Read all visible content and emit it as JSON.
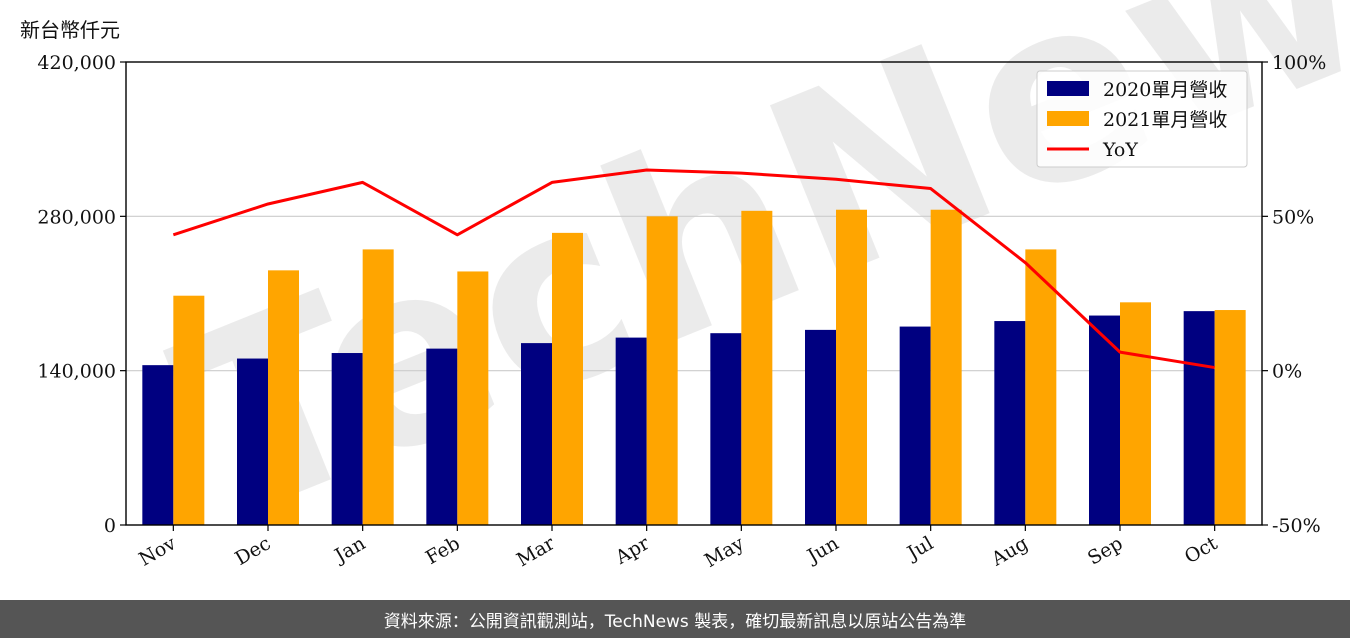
{
  "unit_label": "新台幣仟元",
  "footer_text": "資料來源：公開資訊觀測站，TechNews 製表，確切最新訊息以原站公告為準",
  "watermark_text": "TechNews",
  "colors": {
    "series_2020": "#000080",
    "series_2021": "#FFA500",
    "yoy": "#FF0000",
    "grid": "#cccccc",
    "footer_bg": "#555555"
  },
  "chart_data": {
    "type": "bar",
    "categories": [
      "Nov",
      "Dec",
      "Jan",
      "Feb",
      "Mar",
      "Apr",
      "May",
      "Jun",
      "Jul",
      "Aug",
      "Sep",
      "Oct"
    ],
    "series": [
      {
        "name": "2020單月營收",
        "values": [
          145000,
          151000,
          156000,
          160000,
          165000,
          170000,
          174000,
          177000,
          180000,
          185000,
          190000,
          194000
        ]
      },
      {
        "name": "2021單月營收",
        "values": [
          208000,
          231000,
          250000,
          230000,
          265000,
          280000,
          285000,
          286000,
          286000,
          250000,
          202000,
          195000
        ]
      }
    ],
    "line_series": {
      "name": "YoY",
      "axis": "right",
      "values": [
        44,
        54,
        61,
        44,
        61,
        65,
        64,
        62,
        59,
        35,
        6,
        1
      ]
    },
    "ylim": [
      0,
      420000
    ],
    "yticks": [
      "0",
      "140,000",
      "280,000",
      "420,000"
    ],
    "y2lim": [
      -50,
      100
    ],
    "y2ticks": [
      "-50%",
      "0%",
      "50%",
      "100%"
    ],
    "grid": "horizontal",
    "legend": "top-right"
  }
}
